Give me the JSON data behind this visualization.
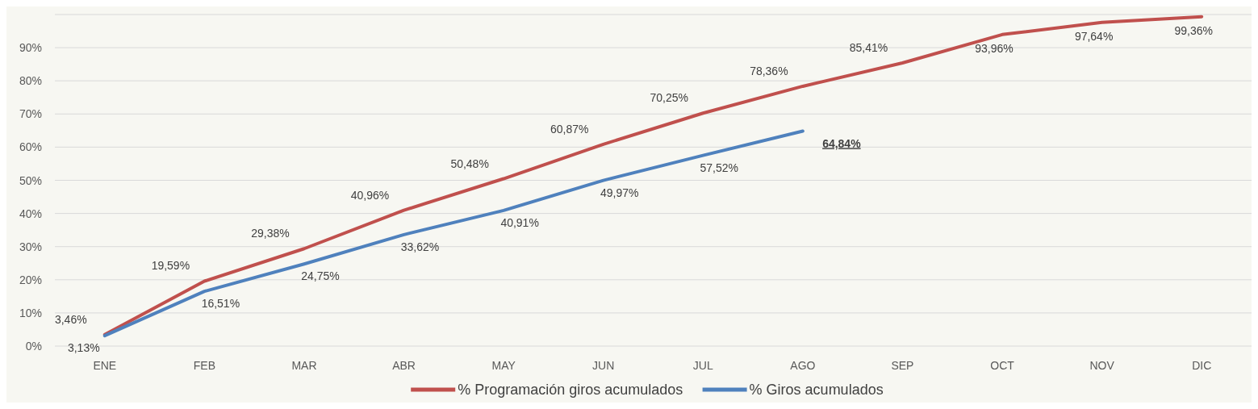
{
  "chart_data": {
    "type": "line",
    "categories": [
      "ENE",
      "FEB",
      "MAR",
      "ABR",
      "MAY",
      "JUN",
      "JUL",
      "AGO",
      "SEP",
      "OCT",
      "NOV",
      "DIC"
    ],
    "series": [
      {
        "name": "% Programación giros acumulados",
        "color": "#c0504d",
        "values": [
          3.46,
          19.59,
          29.38,
          40.96,
          50.48,
          60.87,
          70.25,
          78.36,
          85.41,
          93.96,
          97.64,
          99.36
        ],
        "value_labels": [
          "3,46%",
          "19,59%",
          "29,38%",
          "40,96%",
          "50,48%",
          "60,87%",
          "70,25%",
          "78,36%",
          "85,41%",
          "93,96%",
          "97,64%",
          "99,36%"
        ]
      },
      {
        "name": "% Giros acumulados",
        "color": "#4f81bd",
        "values": [
          3.13,
          16.51,
          24.75,
          33.62,
          40.91,
          49.97,
          57.52,
          64.84,
          null,
          null,
          null,
          null
        ],
        "value_labels": [
          "3,13%",
          "16,51%",
          "24,75%",
          "33,62%",
          "40,91%",
          "49,97%",
          "57,52%",
          "64,84%",
          null,
          null,
          null,
          null
        ]
      }
    ],
    "ylim": [
      0,
      100
    ],
    "yticks": [
      {
        "value": 0,
        "label": "0%"
      },
      {
        "value": 10,
        "label": "10%"
      },
      {
        "value": 20,
        "label": "20%"
      },
      {
        "value": 30,
        "label": "30%"
      },
      {
        "value": 40,
        "label": "40%"
      },
      {
        "value": 50,
        "label": "50%"
      },
      {
        "value": 60,
        "label": "60%"
      },
      {
        "value": 70,
        "label": "70%"
      },
      {
        "value": 80,
        "label": "80%"
      },
      {
        "value": 90,
        "label": "90%"
      },
      {
        "value": 100,
        "label": null
      }
    ],
    "grid": "y",
    "legend": "bottom",
    "marker": "none",
    "line_style": "solid"
  }
}
